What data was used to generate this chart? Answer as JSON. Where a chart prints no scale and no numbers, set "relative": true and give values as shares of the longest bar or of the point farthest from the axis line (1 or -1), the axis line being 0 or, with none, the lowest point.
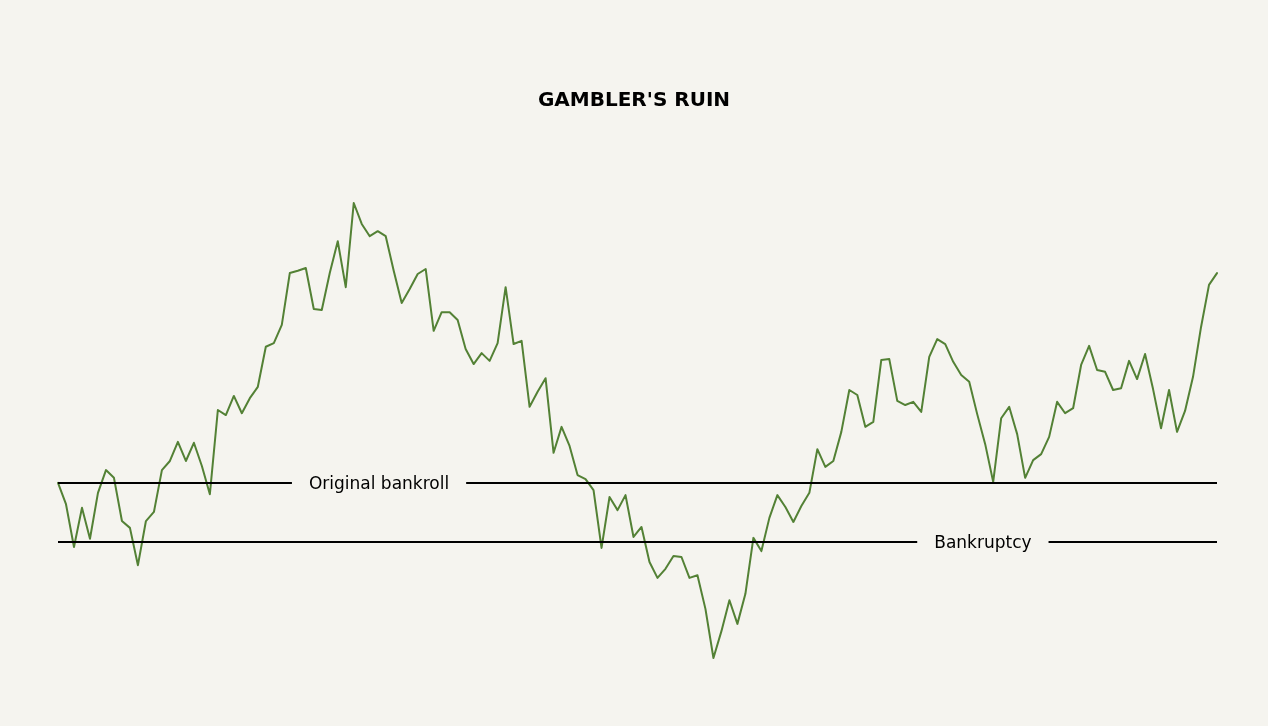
{
  "chart_data": {
    "type": "line",
    "title": "GAMBLER'S RUIN",
    "relative": true,
    "marker": "none",
    "line_style": "solid",
    "categories": [
      null,
      null,
      null,
      null,
      null,
      null,
      null,
      null,
      null,
      null,
      null,
      null,
      null,
      null,
      null,
      null,
      null,
      null,
      null,
      null,
      null,
      null,
      null,
      null,
      null,
      null,
      null,
      null,
      null,
      null,
      null,
      null,
      null,
      null,
      null,
      null,
      null,
      null,
      null,
      null,
      null,
      null,
      null,
      null,
      null,
      null,
      null,
      null,
      null,
      null,
      null,
      null,
      null,
      null,
      null,
      null,
      null,
      null,
      null,
      null,
      null,
      null,
      null,
      null,
      null,
      null,
      null,
      null,
      null,
      null,
      null,
      null,
      null,
      null,
      null,
      null,
      null,
      null,
      null,
      null,
      null,
      null,
      null,
      null,
      null,
      null,
      null,
      null,
      null,
      null,
      null,
      null,
      null,
      null,
      null,
      null,
      null,
      null,
      null,
      null,
      null,
      null,
      null,
      null,
      null,
      null,
      null,
      null,
      null,
      null,
      null,
      null,
      null,
      null,
      null,
      null,
      null,
      null,
      null,
      null,
      null,
      null,
      null,
      null,
      null,
      null,
      null,
      null,
      null,
      null,
      null,
      null,
      null,
      null,
      null,
      null,
      null,
      null,
      null,
      null,
      null,
      null,
      null,
      null,
      null,
      null
    ],
    "series": [
      {
        "color": "#538135",
        "values": [
          0.385,
          0.338,
          0.244,
          0.33,
          0.262,
          0.363,
          0.413,
          0.396,
          0.301,
          0.286,
          0.204,
          0.301,
          0.321,
          0.413,
          0.433,
          0.475,
          0.433,
          0.473,
          0.422,
          0.36,
          0.545,
          0.534,
          0.576,
          0.538,
          0.571,
          0.596,
          0.684,
          0.692,
          0.732,
          0.846,
          0.851,
          0.857,
          0.767,
          0.765,
          0.846,
          0.916,
          0.815,
          1.0,
          0.954,
          0.927,
          0.938,
          0.927,
          0.851,
          0.78,
          0.811,
          0.844,
          0.855,
          0.719,
          0.76,
          0.76,
          0.743,
          0.679,
          0.646,
          0.67,
          0.653,
          0.692,
          0.815,
          0.69,
          0.697,
          0.552,
          0.585,
          0.615,
          0.451,
          0.508,
          0.466,
          0.402,
          0.393,
          0.369,
          0.242,
          0.354,
          0.325,
          0.358,
          0.266,
          0.288,
          0.211,
          0.176,
          0.196,
          0.224,
          0.222,
          0.176,
          0.182,
          0.108,
          0.0,
          0.059,
          0.127,
          0.075,
          0.141,
          0.264,
          0.235,
          0.308,
          0.358,
          0.332,
          0.299,
          0.334,
          0.363,
          0.459,
          0.42,
          0.433,
          0.497,
          0.589,
          0.578,
          0.508,
          0.519,
          0.655,
          0.657,
          0.565,
          0.556,
          0.563,
          0.541,
          0.662,
          0.701,
          0.69,
          0.651,
          0.622,
          0.607,
          0.536,
          0.47,
          0.387,
          0.527,
          0.552,
          0.492,
          0.396,
          0.435,
          0.448,
          0.486,
          0.563,
          0.538,
          0.549,
          0.644,
          0.686,
          0.633,
          0.629,
          0.589,
          0.593,
          0.653,
          0.613,
          0.668,
          0.591,
          0.505,
          0.589,
          0.497,
          0.543,
          0.618,
          0.727,
          0.82,
          0.846
        ]
      }
    ],
    "ref_lines": [
      {
        "axis": "y",
        "value": 0.385,
        "label": "Original bankroll",
        "color": "#000000"
      },
      {
        "axis": "y",
        "value": 0.255,
        "label": "Bankruptcy",
        "color": "#000000"
      }
    ]
  }
}
